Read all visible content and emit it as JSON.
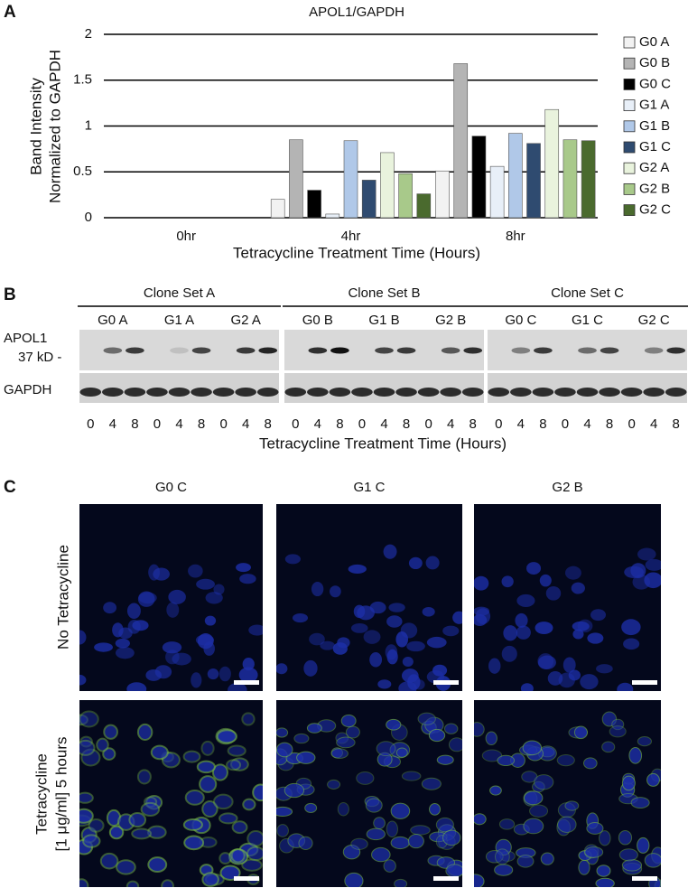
{
  "chart_data": {
    "type": "bar",
    "panel_label": "A",
    "title": "APOL1/GAPDH",
    "ylabel": [
      "Band Intensity",
      "Normalized to GAPDH"
    ],
    "xlabel": "Tetracycline Treatment Time (Hours)",
    "categories": [
      "0hr",
      "4hr",
      "8hr"
    ],
    "series": [
      {
        "name": "G0 A",
        "color": "#f2f2f2",
        "values": [
          0,
          0.2,
          0.51
        ]
      },
      {
        "name": "G0 B",
        "color": "#b4b4b4",
        "values": [
          0,
          0.85,
          1.68
        ]
      },
      {
        "name": "G0 C",
        "color": "#000000",
        "values": [
          0,
          0.3,
          0.89
        ]
      },
      {
        "name": "G1 A",
        "color": "#e8eff8",
        "values": [
          0,
          0.04,
          0.56
        ]
      },
      {
        "name": "G1 B",
        "color": "#b0c8e8",
        "values": [
          0,
          0.84,
          0.92
        ]
      },
      {
        "name": "G1 C",
        "color": "#2f4b70",
        "values": [
          0,
          0.41,
          0.81
        ]
      },
      {
        "name": "G2 A",
        "color": "#e9f3dd",
        "values": [
          0,
          0.71,
          1.18
        ]
      },
      {
        "name": "G2 B",
        "color": "#a8c98a",
        "values": [
          0,
          0.48,
          0.85
        ]
      },
      {
        "name": "G2 C",
        "color": "#4a6a2e",
        "values": [
          0,
          0.26,
          0.84
        ]
      }
    ],
    "ylim": [
      0,
      2
    ],
    "yticks": [
      0,
      0.5,
      1,
      1.5,
      2
    ],
    "grid": true,
    "legend": "right"
  },
  "panel_b": {
    "label": "B",
    "clone_sets": [
      {
        "title": "Clone Set A",
        "groups": [
          "G0 A",
          "G1 A",
          "G2 A"
        ]
      },
      {
        "title": "Clone Set B",
        "groups": [
          "G0 B",
          "G1 B",
          "G2 B"
        ]
      },
      {
        "title": "Clone Set C",
        "groups": [
          "G0 C",
          "G1 C",
          "G2 C"
        ]
      }
    ],
    "row_labels": [
      "APOL1",
      "37 kD -",
      "GAPDH"
    ],
    "times": [
      "0",
      "4",
      "8"
    ],
    "xlabel": "Tetracycline Treatment Time (Hours)"
  },
  "panel_c": {
    "label": "C",
    "columns": [
      "G0 C",
      "G1 C",
      "G2 B"
    ],
    "rows": [
      [
        "No Tetracycline"
      ],
      [
        "Tetracycline",
        "[1 μg/ml] 5 hours"
      ]
    ]
  }
}
